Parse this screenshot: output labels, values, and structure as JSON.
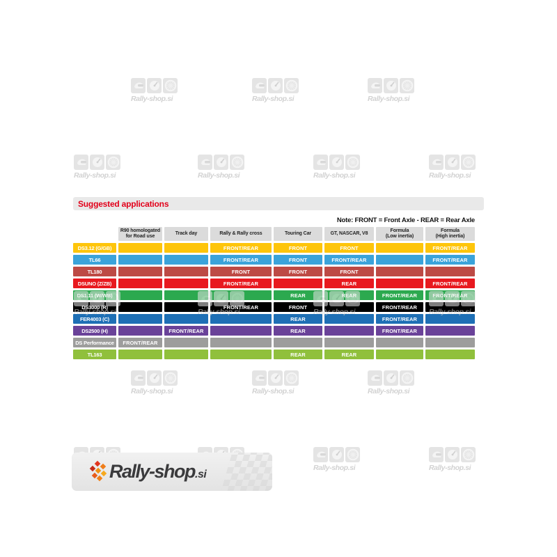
{
  "page": {
    "section_title": "Suggested applications",
    "note": "Note: FRONT = Front Axle - REAR = Rear Axle",
    "watermark_text": "Rally-shop.si",
    "logo_text": "Rally-shop",
    "logo_suffix": ".si"
  },
  "table": {
    "columns": [
      {
        "label": "R90 homologated for Road use",
        "lines": [
          "R90 homologated",
          "for Road use"
        ]
      },
      {
        "label": "Track day",
        "lines": [
          "Track day"
        ]
      },
      {
        "label": "Rally & Rally cross",
        "lines": [
          "Rally & Rally cross"
        ]
      },
      {
        "label": "Touring Car",
        "lines": [
          "Touring Car"
        ]
      },
      {
        "label": "GT, NASCAR, V8",
        "lines": [
          "GT, NASCAR, V8"
        ]
      },
      {
        "label": "Formula (Low inertia)",
        "lines": [
          "Formula",
          "(Low inertia)"
        ]
      },
      {
        "label": "Formula (High inertia)",
        "lines": [
          "Formula",
          "(High inertia)"
        ]
      }
    ],
    "rows": [
      {
        "name": "DS3.12 (G/GB)",
        "color": "#fec50b",
        "cells": [
          "",
          "",
          "FRONT/REAR",
          "FRONT",
          "FRONT",
          "",
          "FRONT/REAR"
        ]
      },
      {
        "name": "TL66",
        "color": "#3ba3da",
        "cells": [
          "",
          "",
          "FRONT/REAR",
          "FRONT",
          "FRONT/REAR",
          "",
          "FRONT/REAR"
        ]
      },
      {
        "name": "TL180",
        "color": "#bd4a45",
        "cells": [
          "",
          "",
          "FRONT",
          "FRONT",
          "FRONT",
          "",
          ""
        ]
      },
      {
        "name": "DSUNO (Z/ZB)",
        "color": "#e8191f",
        "cells": [
          "",
          "",
          "FRONT/REAR",
          "",
          "REAR",
          "",
          "FRONT/REAR"
        ]
      },
      {
        "name": "DS1.11 (W/WB)",
        "color": "#2ca94f",
        "cells": [
          "",
          "",
          "",
          "REAR",
          "REAR",
          "FRONT/REAR",
          "FRONT/REAR"
        ]
      },
      {
        "name": "DS3000 (R)",
        "color": "#000000",
        "cells": [
          "",
          "",
          "FRONT/REAR",
          "FRONT",
          "",
          "FRONT/REAR",
          ""
        ]
      },
      {
        "name": "FER4003 (C)",
        "color": "#1e6fb5",
        "cells": [
          "",
          "",
          "",
          "REAR",
          "",
          "FRONT/REAR",
          ""
        ]
      },
      {
        "name": "DS2500 (H)",
        "color": "#6a4299",
        "cells": [
          "",
          "FRONT/REAR",
          "",
          "REAR",
          "",
          "FRONT/REAR",
          ""
        ]
      },
      {
        "name": "DS Performance",
        "color": "#9d9d9c",
        "cells": [
          "FRONT/REAR",
          "",
          "",
          "",
          "",
          "",
          ""
        ]
      },
      {
        "name": "TL163",
        "color": "#90c03c",
        "cells": [
          "",
          "",
          "",
          "REAR",
          "REAR",
          "",
          ""
        ]
      }
    ],
    "cell_values_legend": [
      "FRONT",
      "REAR",
      "FRONT/REAR"
    ]
  },
  "colors": {
    "title_red": "#e2001a",
    "header_gray": "#dbdbdb",
    "bar_gray": "#e9e9e9",
    "cell_text": "#ffffff"
  }
}
